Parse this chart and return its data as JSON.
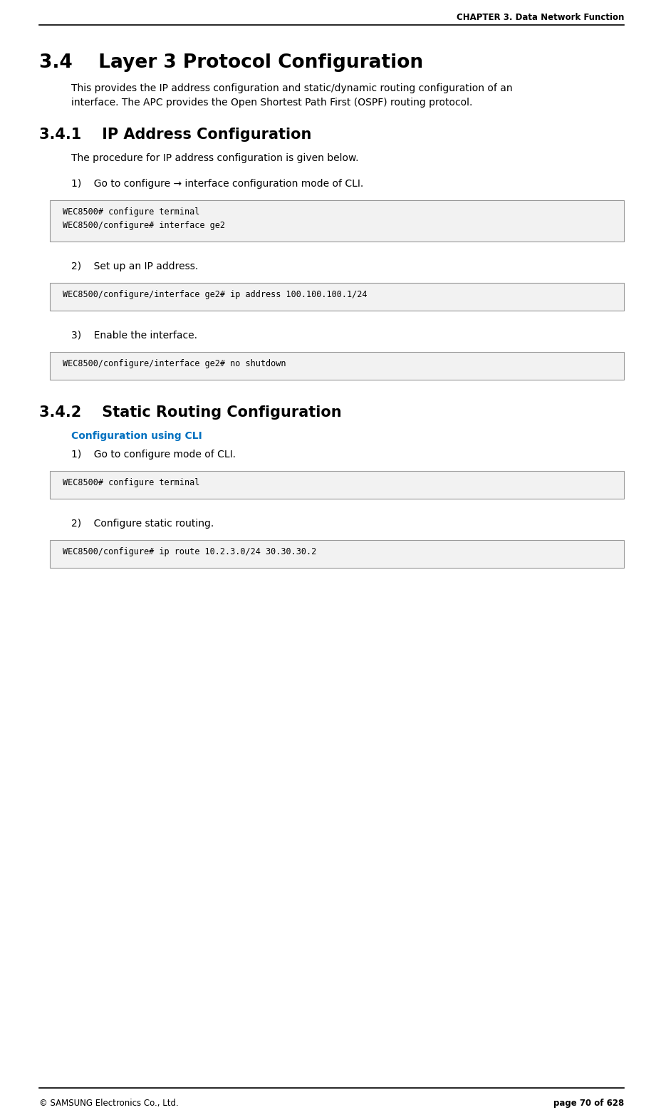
{
  "page_width": 9.21,
  "page_height": 15.65,
  "dpi": 100,
  "bg_color": "#ffffff",
  "header_text": "CHAPTER 3. Data Network Function",
  "footer_left": "© SAMSUNG Electronics Co., Ltd.",
  "footer_right": "page 70 of 628",
  "section_34_title": "3.4    Layer 3 Protocol Configuration",
  "section_34_body_line1": "This provides the IP address configuration and static/dynamic routing configuration of an",
  "section_34_body_line2": "interface. The APC provides the Open Shortest Path First (OSPF) routing protocol.",
  "section_341_title": "3.4.1    IP Address Configuration",
  "section_341_body": "The procedure for IP address configuration is given below.",
  "step1_text": "1)    Go to configure → interface configuration mode of CLI.",
  "code_box1_line1": "WEC8500# configure terminal",
  "code_box1_line2": "WEC8500/configure# interface ge2",
  "step2_text": "2)    Set up an IP address.",
  "code_box2_line1": "WEC8500/configure/interface ge2# ip address 100.100.100.1/24",
  "step3_text": "3)    Enable the interface.",
  "code_box3_line1": "WEC8500/configure/interface ge2# no shutdown",
  "section_342_title": "3.4.2    Static Routing Configuration",
  "config_cli_label": "Configuration using CLI",
  "step4_text": "1)    Go to configure mode of CLI.",
  "code_box4_line1": "WEC8500# configure terminal",
  "step5_text": "2)    Configure static routing.",
  "code_box5_line1": "WEC8500/configure# ip route 10.2.3.0/24 30.30.30.2",
  "code_bg": "#f2f2f2",
  "code_border": "#999999",
  "text_color": "#000000",
  "cli_label_color": "#0070c0"
}
